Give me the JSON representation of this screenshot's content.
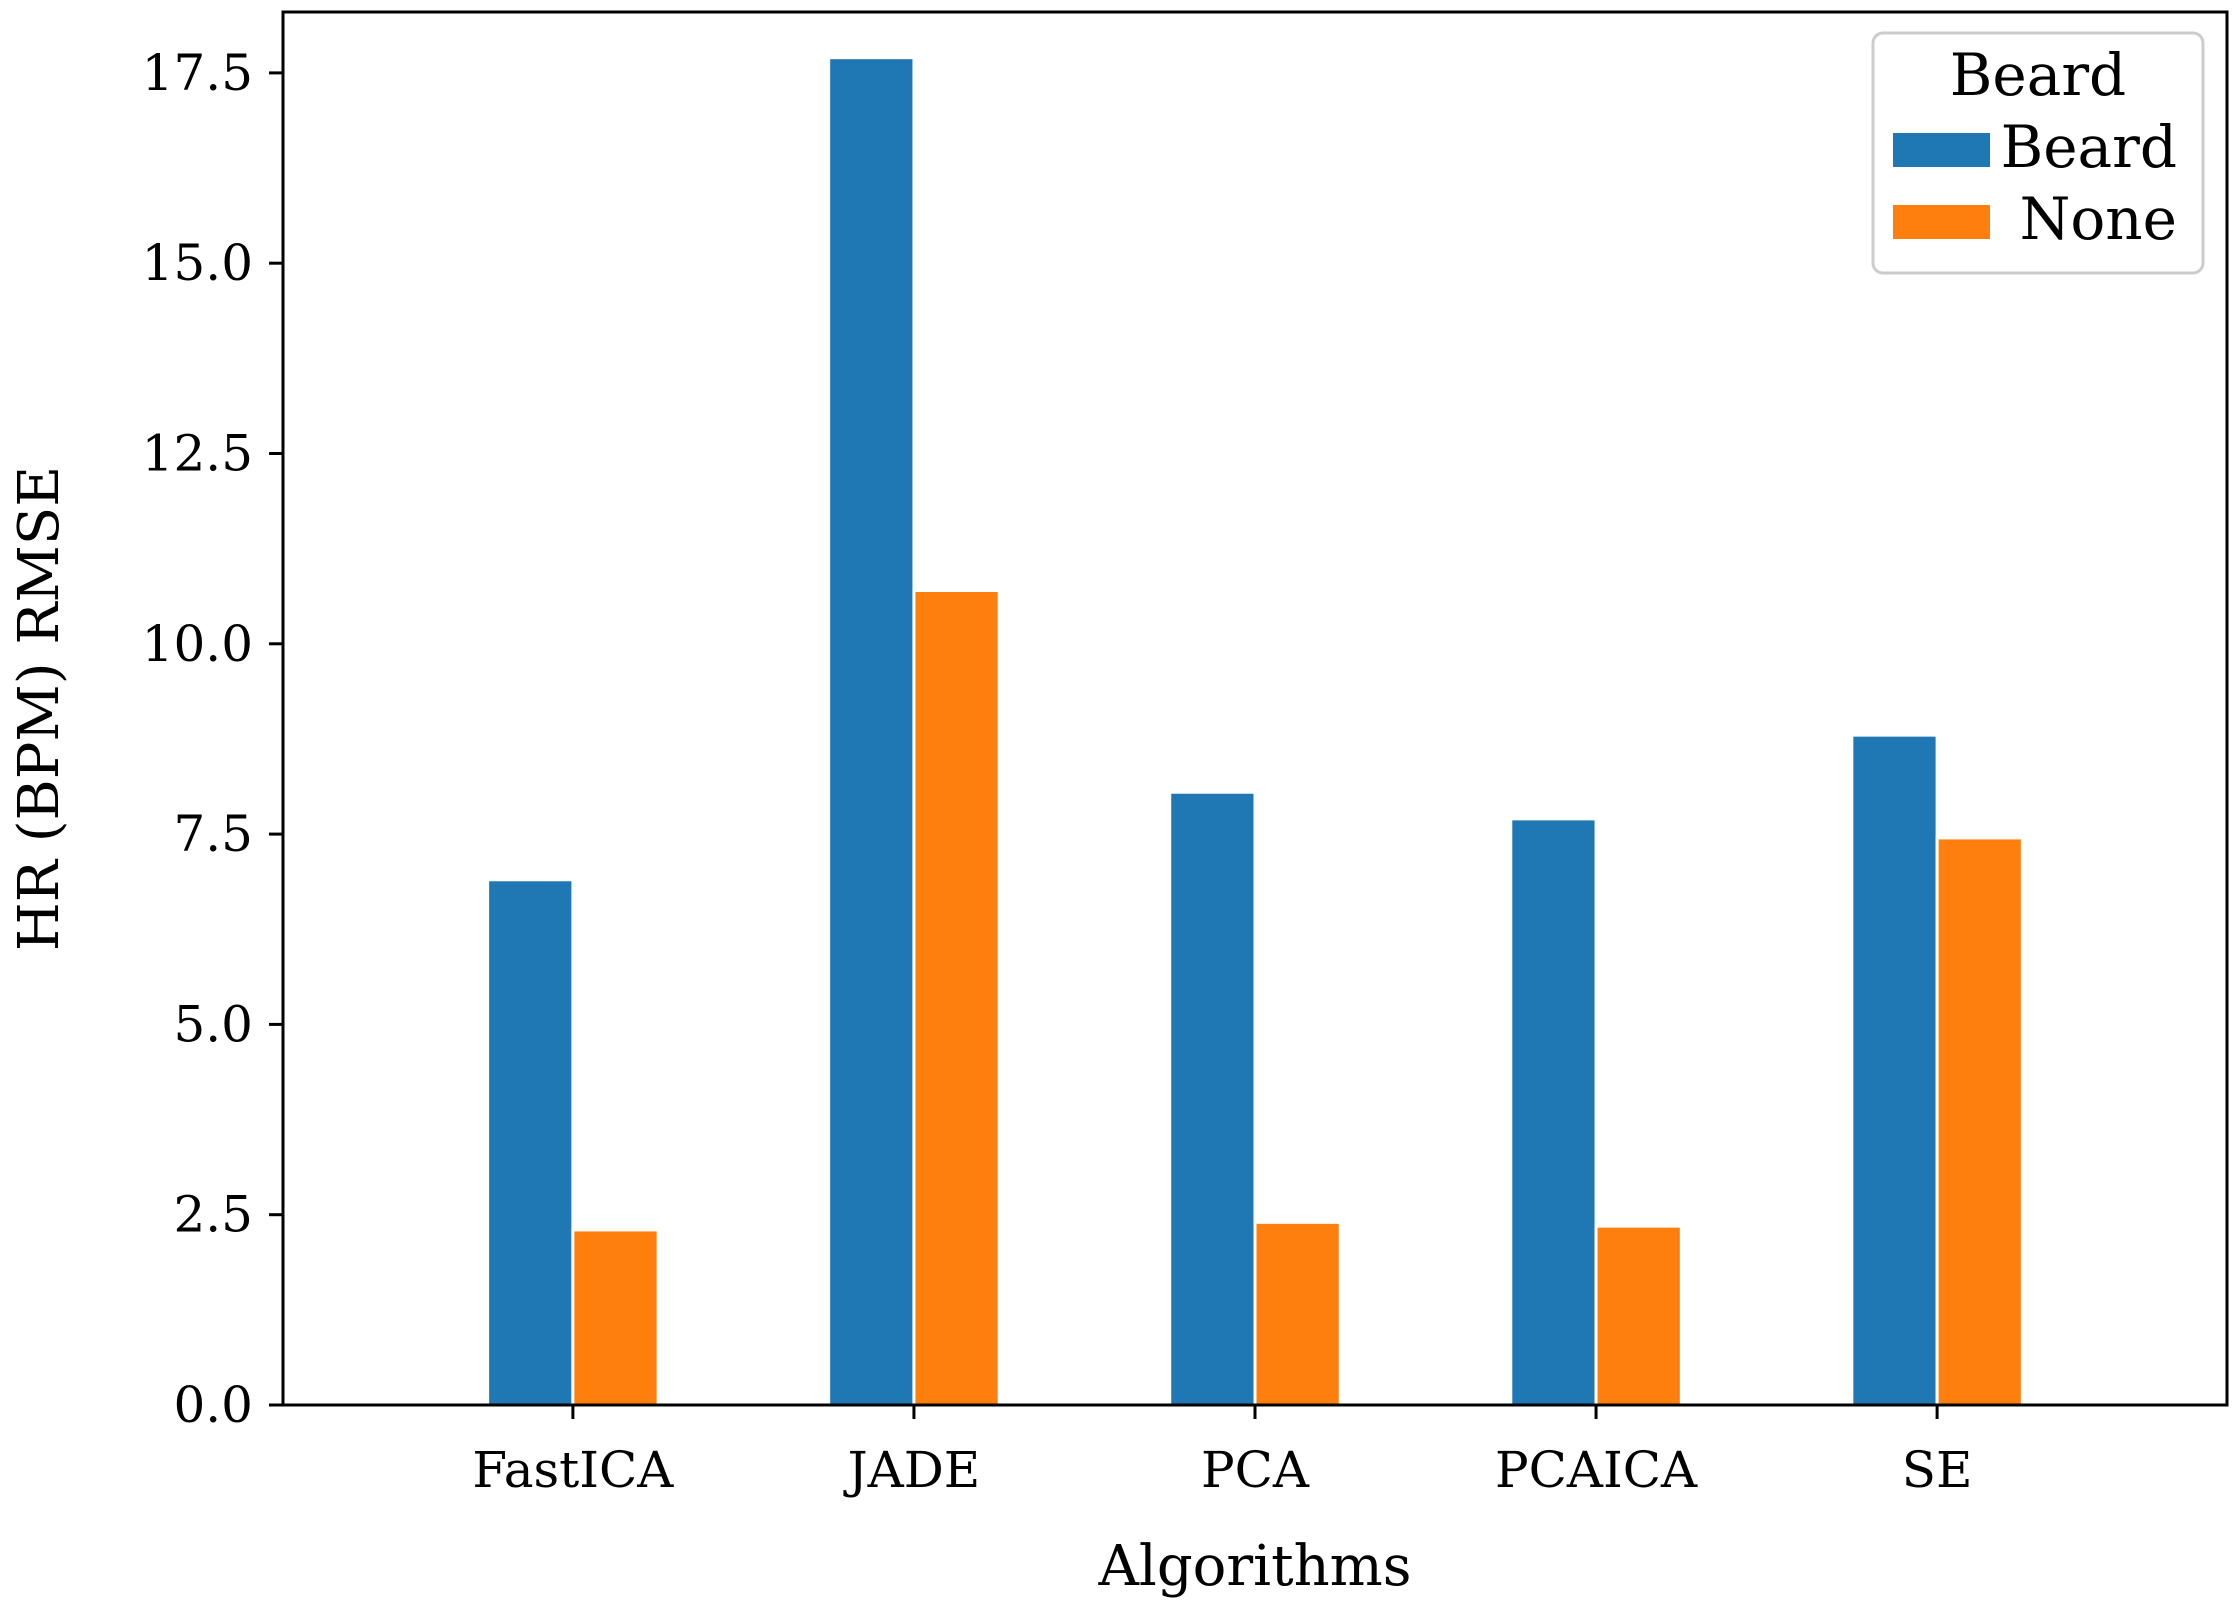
{
  "chart_data": {
    "type": "bar",
    "title": "",
    "xlabel": "Algorithms",
    "ylabel": "HR (BPM) RMSE",
    "categories": [
      "FastICA",
      "JADE",
      "PCA",
      "PCAICA",
      "SE"
    ],
    "series": [
      {
        "name": "Beard",
        "color": "#1f77b4",
        "values": [
          6.9,
          17.7,
          8.05,
          7.7,
          8.8
        ]
      },
      {
        "name": "None",
        "color": "#ff7f0e",
        "values": [
          2.3,
          10.7,
          2.4,
          2.35,
          7.45
        ]
      }
    ],
    "ylim": [
      0,
      18.3
    ],
    "yticks": [
      0.0,
      2.5,
      5.0,
      7.5,
      10.0,
      12.5,
      15.0,
      17.5
    ],
    "ytick_labels": [
      "0.0",
      "2.5",
      "5.0",
      "7.5",
      "10.0",
      "12.5",
      "15.0",
      "17.5"
    ],
    "grid": false,
    "legend": {
      "title": "Beard",
      "position": "top-right",
      "entries": [
        "Beard",
        "None"
      ]
    }
  }
}
